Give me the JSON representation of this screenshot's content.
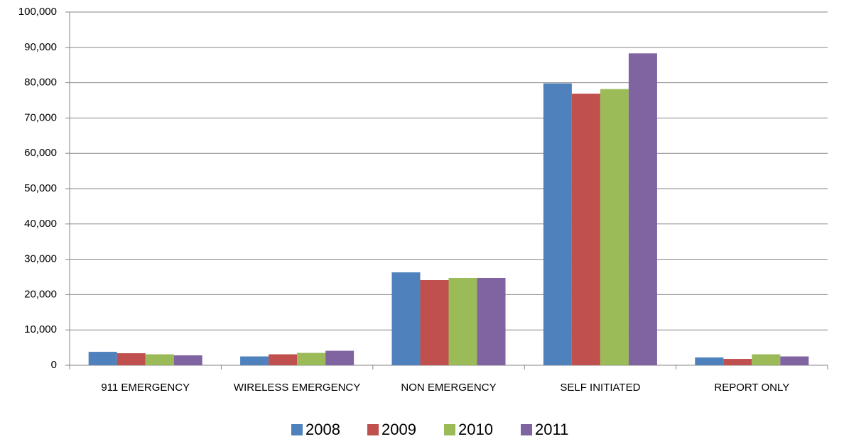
{
  "chart_data": {
    "type": "bar",
    "categories": [
      "911 EMERGENCY",
      "WIRELESS EMERGENCY",
      "NON EMERGENCY",
      "SELF INITIATED",
      "REPORT ONLY"
    ],
    "series": [
      {
        "name": "2008",
        "color": "#4f81bd",
        "values": [
          3800,
          2500,
          26300,
          79800,
          2200
        ]
      },
      {
        "name": "2009",
        "color": "#c0504d",
        "values": [
          3400,
          3100,
          24100,
          76900,
          1800
        ]
      },
      {
        "name": "2010",
        "color": "#9bbb59",
        "values": [
          3100,
          3500,
          24700,
          78200,
          3100
        ]
      },
      {
        "name": "2011",
        "color": "#8064a2",
        "values": [
          2800,
          4100,
          24700,
          88300,
          2500
        ]
      }
    ],
    "ylim": [
      0,
      100000
    ],
    "yticks": [
      0,
      {
        "value": 10000,
        "label": "10,000"
      },
      {
        "value": 20000,
        "label": "20,000"
      },
      {
        "value": 30000,
        "label": "30,000"
      },
      {
        "value": 40000,
        "label": "40,000"
      },
      {
        "value": 50000,
        "label": "50,000"
      },
      {
        "value": 60000,
        "label": "60,000"
      },
      {
        "value": 70000,
        "label": "70,000"
      },
      {
        "value": 80000,
        "label": "80,000"
      },
      {
        "value": 90000,
        "label": "90,000"
      },
      {
        "value": 100000,
        "label": "100,000"
      }
    ],
    "grid": true,
    "legend": "bottom"
  }
}
